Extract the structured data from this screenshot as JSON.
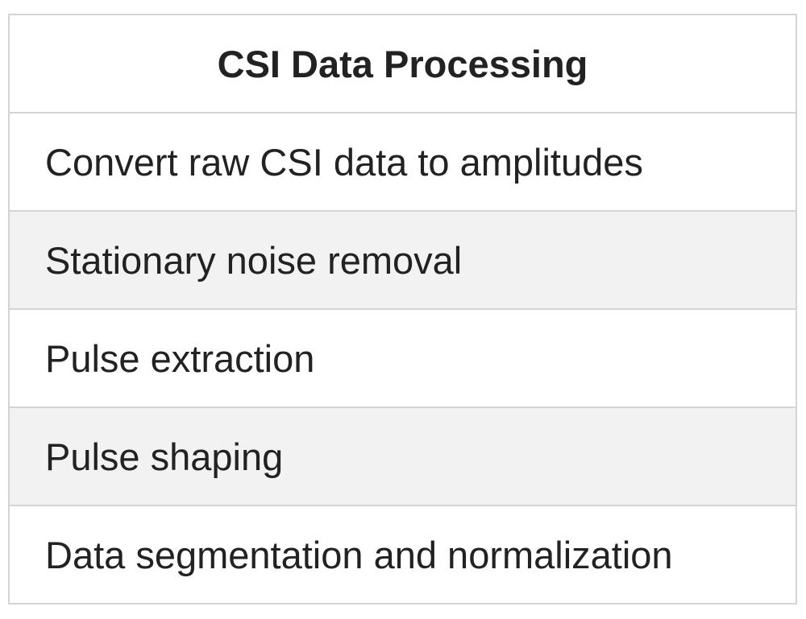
{
  "table": {
    "header": "CSI Data Processing",
    "rows": [
      "Convert raw CSI data to amplitudes",
      "Stationary noise removal",
      "Pulse extraction",
      "Pulse shaping",
      "Data segmentation and normalization"
    ]
  }
}
